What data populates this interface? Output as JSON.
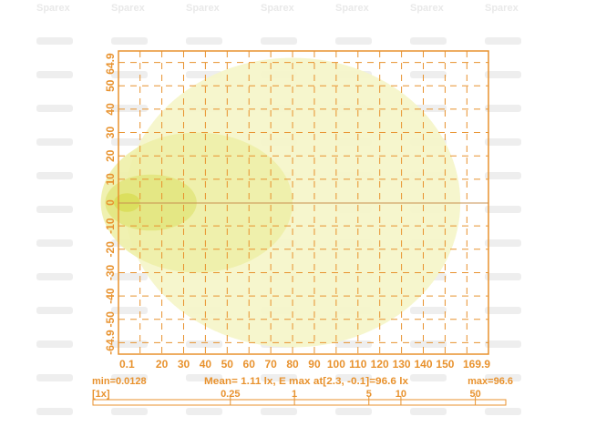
{
  "watermark": "Sparex",
  "chart_data": {
    "type": "heatmap",
    "description_kind": "isolux diagram",
    "xlim": [
      0.1,
      169.9
    ],
    "ylim": [
      -64.9,
      64.9
    ],
    "x_tick_labels": [
      "0.1",
      "20",
      "30",
      "40",
      "50",
      "60",
      "70",
      "80",
      "90",
      "100",
      "110",
      "120",
      "130",
      "140",
      "150",
      "169.9"
    ],
    "x_ticks": [
      0.1,
      20,
      30,
      40,
      50,
      60,
      70,
      80,
      90,
      100,
      110,
      120,
      130,
      140,
      150,
      169.9
    ],
    "y_tick_labels": [
      "64.9",
      "50",
      "40",
      "30",
      "20",
      "10",
      "0",
      "-10",
      "-20",
      "-30",
      "-40",
      "-50",
      "-64.9"
    ],
    "y_ticks": [
      64.9,
      50,
      40,
      30,
      20,
      10,
      0,
      -10,
      -20,
      -30,
      -40,
      -50,
      -64.9
    ],
    "grid": true,
    "contours": [
      {
        "level": 0.25,
        "color": "#f5f5c8",
        "cx": 80,
        "cy": 0,
        "rx": 77,
        "ry": 62
      },
      {
        "level": 1,
        "color": "#eef0a8",
        "cx": 36,
        "cy": 0,
        "rx": 44,
        "ry": 30
      },
      {
        "level": 5,
        "color": "#e2e680",
        "cx": 15,
        "cy": 0,
        "rx": 21,
        "ry": 12
      },
      {
        "level": 10,
        "color": "#d9de5a",
        "cx": 4,
        "cy": 0,
        "rx": 6,
        "ry": 4
      }
    ],
    "stats": {
      "min": "min=0.0128",
      "mean": "Mean= 1.11 lx, E max at[2.3, -0.1]=96.6 lx",
      "max": "max=96.6"
    },
    "scale": {
      "label": "[1x]",
      "levels": [
        "0.25",
        "1",
        "5",
        "10",
        "50"
      ],
      "levels_num": [
        0.25,
        1,
        5,
        10,
        50
      ]
    },
    "accent_color": "#e8922e"
  }
}
